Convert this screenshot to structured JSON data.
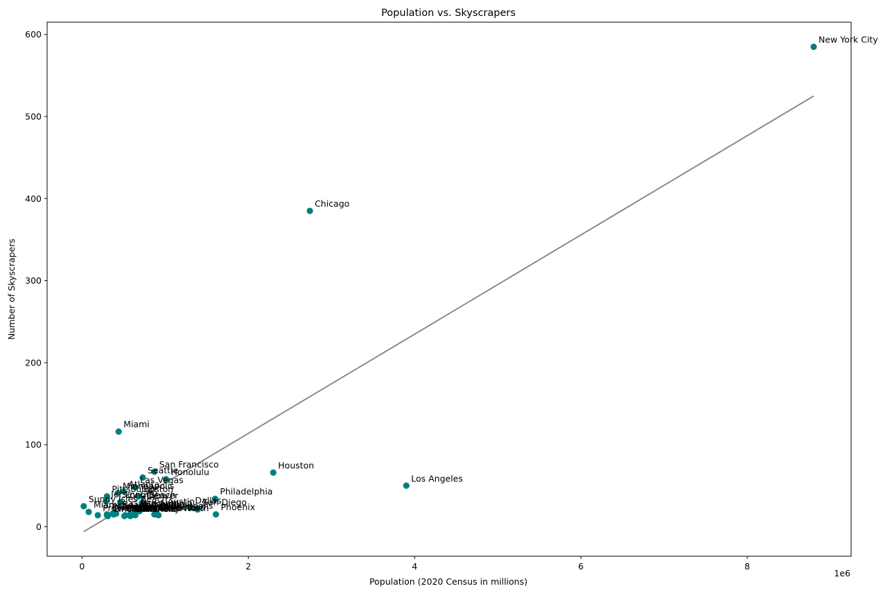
{
  "chart_data": {
    "type": "scatter",
    "title": "Population vs. Skyscrapers",
    "xlabel": "Population (2020 Census in millions)",
    "ylabel": "Number of Skyscrapers",
    "x_offset_label": "1e6",
    "xlim": [
      -0.42,
      9.25
    ],
    "ylim": [
      -36,
      615
    ],
    "xticks": [
      0,
      2,
      4,
      6,
      8
    ],
    "xtick_labels": [
      "0",
      "2",
      "4",
      "6",
      "8"
    ],
    "yticks": [
      0,
      100,
      200,
      300,
      400,
      500,
      600
    ],
    "ytick_labels": [
      "0",
      "100",
      "200",
      "300",
      "400",
      "500",
      "600"
    ],
    "grid": false,
    "marker_color": "#008080",
    "trendline_color": "#808080",
    "trendline": {
      "x": [
        0.02,
        8.8
      ],
      "y": [
        -6,
        525
      ]
    },
    "points": [
      {
        "label": "New York City",
        "x": 8.8,
        "y": 585
      },
      {
        "label": "Chicago",
        "x": 2.74,
        "y": 385
      },
      {
        "label": "Miami",
        "x": 0.44,
        "y": 116
      },
      {
        "label": "Houston",
        "x": 2.3,
        "y": 66
      },
      {
        "label": "Los Angeles",
        "x": 3.9,
        "y": 50
      },
      {
        "label": "San Francisco",
        "x": 0.87,
        "y": 67
      },
      {
        "label": "Seattle",
        "x": 0.73,
        "y": 60
      },
      {
        "label": "Honolulu",
        "x": 1.01,
        "y": 58
      },
      {
        "label": "Las Vegas",
        "x": 0.64,
        "y": 48
      },
      {
        "label": "Atlanta",
        "x": 0.5,
        "y": 43
      },
      {
        "label": "Minneapolis",
        "x": 0.43,
        "y": 41
      },
      {
        "label": "Boston",
        "x": 0.68,
        "y": 37
      },
      {
        "label": "Pittsburgh",
        "x": 0.3,
        "y": 37
      },
      {
        "label": "Philadelphia",
        "x": 1.6,
        "y": 34
      },
      {
        "label": "Jersey City",
        "x": 0.29,
        "y": 31
      },
      {
        "label": "Long Beach",
        "x": 0.46,
        "y": 30
      },
      {
        "label": "Denver",
        "x": 0.72,
        "y": 29
      },
      {
        "label": "Sunny Isles Beach",
        "x": 0.02,
        "y": 25
      },
      {
        "label": "Austin",
        "x": 0.97,
        "y": 22
      },
      {
        "label": "Dallas",
        "x": 1.3,
        "y": 23
      },
      {
        "label": "San Diego",
        "x": 1.39,
        "y": 21
      },
      {
        "label": "Indianapolis",
        "x": 0.89,
        "y": 17
      },
      {
        "label": "Columbus",
        "x": 0.9,
        "y": 15
      },
      {
        "label": "Miami Beach",
        "x": 0.08,
        "y": 18
      },
      {
        "label": "San Antonio",
        "x": 0.64,
        "y": 20
      },
      {
        "label": "Oklahoma City",
        "x": 0.3,
        "y": 15
      },
      {
        "label": "Milwaukee",
        "x": 0.58,
        "y": 15
      },
      {
        "label": "Cincinnati",
        "x": 0.31,
        "y": 13
      },
      {
        "label": "Nashville",
        "x": 0.69,
        "y": 19
      },
      {
        "label": "Tulsa",
        "x": 0.41,
        "y": 16
      },
      {
        "label": "St. Louis",
        "x": 0.3,
        "y": 14
      },
      {
        "label": "Phoenix",
        "x": 1.61,
        "y": 15
      },
      {
        "label": "Charlotte",
        "x": 0.87,
        "y": 15
      },
      {
        "label": "Detroit",
        "x": 0.64,
        "y": 14
      },
      {
        "label": "Baltimore",
        "x": 0.58,
        "y": 13
      },
      {
        "label": "Portland",
        "x": 0.65,
        "y": 18
      },
      {
        "label": "Fort Worth",
        "x": 0.92,
        "y": 14
      },
      {
        "label": "New Orleans",
        "x": 0.38,
        "y": 15
      },
      {
        "label": "Cleveland",
        "x": 0.37,
        "y": 16
      },
      {
        "label": "Kansas City",
        "x": 0.51,
        "y": 13
      },
      {
        "label": "Providence",
        "x": 0.19,
        "y": 14
      },
      {
        "label": "Sacramento",
        "x": 0.52,
        "y": 14
      }
    ]
  }
}
